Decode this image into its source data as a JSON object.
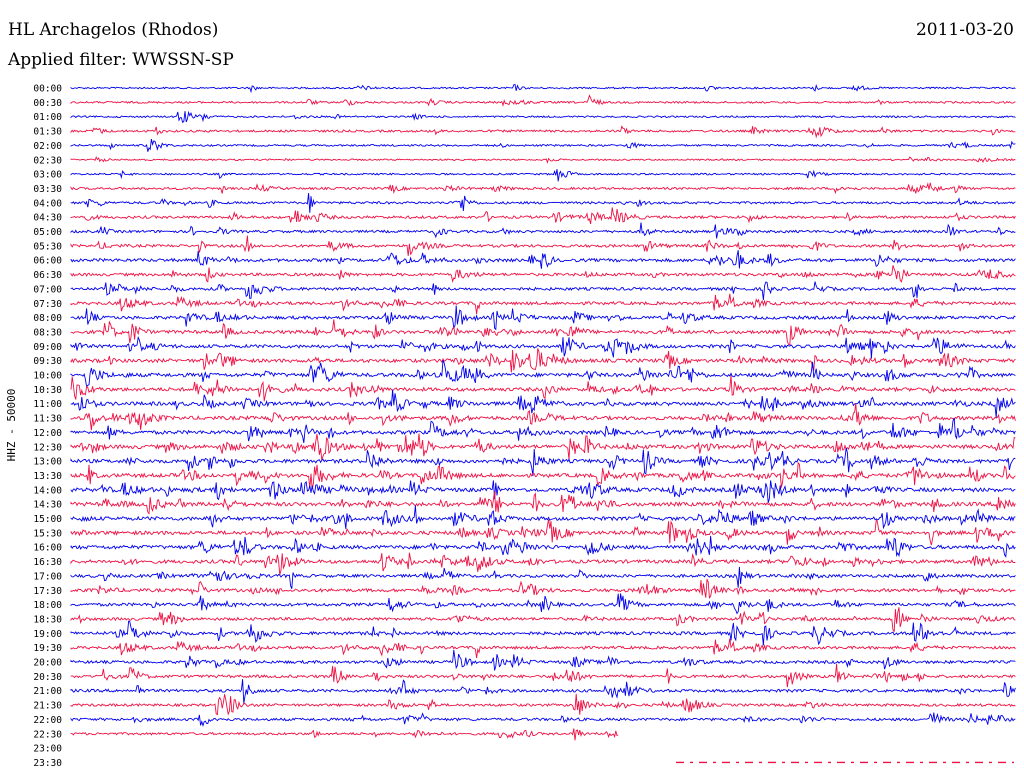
{
  "header": {
    "station": "HL Archagelos (Rhodos)",
    "date": "2011-03-20",
    "filter": "Applied filter: WWSSN-SP"
  },
  "chart_data": {
    "type": "line",
    "title": "HL Archagelos (Rhodos)",
    "subtitle": "Applied filter: WWSSN-SP",
    "ylabel": "HHZ - 50000",
    "rows": [
      "00:00",
      "00:30",
      "01:00",
      "01:30",
      "02:00",
      "02:30",
      "03:00",
      "03:30",
      "04:00",
      "04:30",
      "05:00",
      "05:30",
      "06:00",
      "06:30",
      "07:00",
      "07:30",
      "08:00",
      "08:30",
      "09:00",
      "09:30",
      "10:00",
      "10:30",
      "11:00",
      "11:30",
      "12:00",
      "12:30",
      "13:00",
      "13:30",
      "14:00",
      "14:30",
      "15:00",
      "15:30",
      "16:00",
      "16:30",
      "17:00",
      "17:30",
      "18:00",
      "18:30",
      "19:00",
      "19:30",
      "20:00",
      "20:30",
      "21:00",
      "21:30",
      "22:00",
      "22:30",
      "23:00",
      "23:30"
    ],
    "activity": [
      0.15,
      0.2,
      0.15,
      0.3,
      0.2,
      0.1,
      0.15,
      0.3,
      0.35,
      0.45,
      0.4,
      0.45,
      0.6,
      0.5,
      0.5,
      0.55,
      0.6,
      0.65,
      0.65,
      0.7,
      0.75,
      0.7,
      0.75,
      0.75,
      0.75,
      0.8,
      0.75,
      0.8,
      0.8,
      0.8,
      0.75,
      0.75,
      0.75,
      0.7,
      0.55,
      0.6,
      0.55,
      0.5,
      0.6,
      0.5,
      0.5,
      0.5,
      0.5,
      0.4,
      0.45,
      0.35,
      0.0,
      0.0
    ],
    "row_extent": [
      1,
      1,
      1,
      1,
      1,
      1,
      1,
      1,
      1,
      1,
      1,
      1,
      1,
      1,
      1,
      1,
      1,
      1,
      1,
      1,
      1,
      1,
      1,
      1,
      1,
      1,
      1,
      1,
      1,
      1,
      1,
      1,
      1,
      1,
      1,
      1,
      1,
      1,
      1,
      1,
      1,
      1,
      1,
      1,
      1,
      0.58,
      0,
      0
    ],
    "colors": {
      "odd": "#0000ee",
      "even": "#ee1144"
    },
    "grid": false
  }
}
